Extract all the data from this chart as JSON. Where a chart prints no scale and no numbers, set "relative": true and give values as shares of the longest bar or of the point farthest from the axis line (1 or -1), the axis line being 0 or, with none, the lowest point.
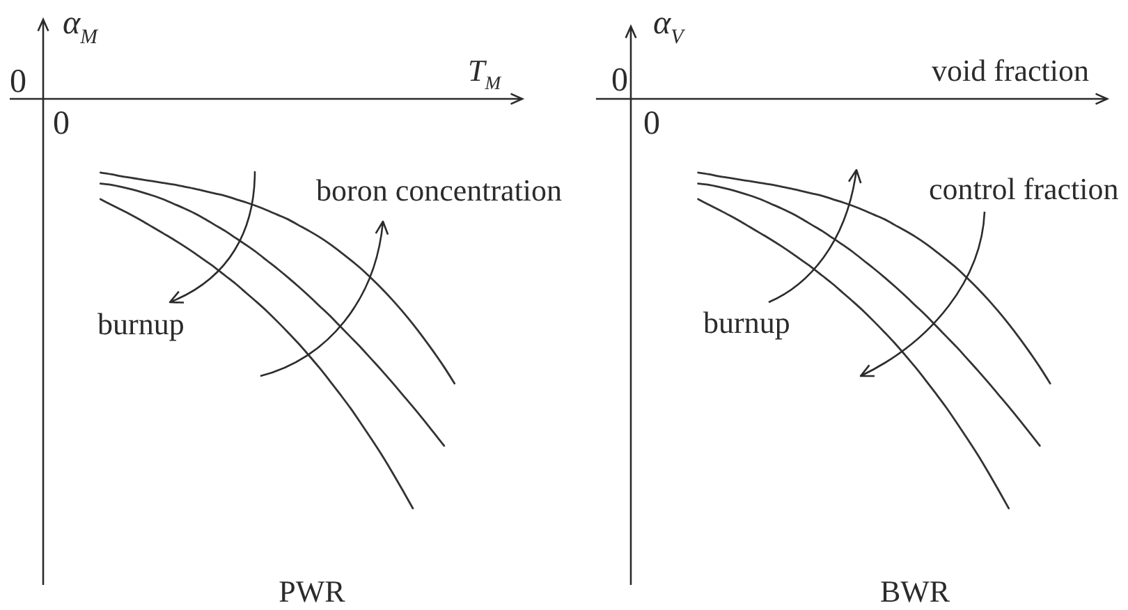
{
  "chart_data": [
    {
      "type": "line",
      "title": "PWR",
      "xlabel": "T$_{M}$",
      "ylabel": "α$_{M}$",
      "relative": true,
      "annotations": [
        "0",
        "0",
        "burnup",
        "boron concentration"
      ],
      "categories": [
        null,
        null,
        null,
        null,
        null,
        null,
        null,
        null,
        null,
        null,
        null,
        null,
        null,
        null,
        null,
        null,
        null,
        null,
        null,
        null,
        null,
        null,
        null,
        null,
        null,
        null,
        null,
        null,
        null,
        null,
        null,
        null,
        null,
        null,
        null,
        null,
        null,
        null,
        null,
        null,
        null,
        null,
        null,
        null,
        null,
        null
      ],
      "series": [
        {
          "color": "#333333",
          "values": [
            null,
            null,
            null,
            null,
            null,
            -0.18,
            -0.184,
            -0.189,
            -0.193,
            -0.197,
            -0.201,
            -0.205,
            -0.209,
            -0.214,
            -0.219,
            -0.225,
            -0.231,
            -0.237,
            -0.245,
            -0.253,
            -0.262,
            -0.272,
            -0.283,
            -0.294,
            -0.308,
            -0.322,
            -0.337,
            -0.354,
            -0.373,
            -0.393,
            -0.414,
            -0.438,
            -0.463,
            -0.49,
            -0.519,
            -0.55,
            -0.583,
            -0.618,
            -0.655,
            -0.695,
            null,
            null,
            null,
            null,
            null,
            null
          ]
        },
        {
          "color": "#333333",
          "values": [
            null,
            null,
            null,
            null,
            null,
            -0.207,
            -0.21,
            -0.215,
            -0.221,
            -0.228,
            -0.236,
            -0.245,
            -0.256,
            -0.267,
            -0.279,
            -0.293,
            -0.308,
            -0.323,
            -0.34,
            -0.357,
            -0.375,
            -0.395,
            -0.415,
            -0.436,
            -0.458,
            -0.481,
            -0.505,
            -0.529,
            -0.555,
            -0.581,
            -0.607,
            -0.635,
            -0.663,
            -0.692,
            -0.722,
            -0.752,
            -0.783,
            -0.815,
            -0.847,
            null,
            null,
            null,
            null,
            null,
            null,
            null
          ]
        },
        {
          "color": "#333333",
          "values": [
            null,
            null,
            null,
            null,
            null,
            -0.245,
            -0.258,
            -0.271,
            -0.284,
            -0.298,
            -0.313,
            -0.328,
            -0.343,
            -0.359,
            -0.376,
            -0.394,
            -0.412,
            -0.432,
            -0.452,
            -0.474,
            -0.496,
            -0.519,
            -0.544,
            -0.57,
            -0.597,
            -0.626,
            -0.656,
            -0.688,
            -0.721,
            -0.755,
            -0.792,
            -0.83,
            -0.869,
            -0.911,
            -0.955,
            -1,
            null,
            null,
            null,
            null,
            null,
            null,
            null,
            null,
            null,
            null
          ]
        }
      ]
    },
    {
      "type": "line",
      "title": "BWR",
      "xlabel": "void fraction",
      "ylabel": "α$_{V}$",
      "relative": true,
      "annotations": [
        "0",
        "0",
        "burnup",
        "control fraction"
      ],
      "categories": [
        null,
        null,
        null,
        null,
        null,
        null,
        null,
        null,
        null,
        null,
        null,
        null,
        null,
        null,
        null,
        null,
        null,
        null,
        null,
        null,
        null,
        null,
        null,
        null,
        null,
        null,
        null,
        null,
        null,
        null,
        null,
        null,
        null,
        null,
        null,
        null,
        null,
        null,
        null,
        null,
        null,
        null,
        null,
        null,
        null,
        null
      ],
      "series": [
        {
          "color": "#333333",
          "values": [
            null,
            null,
            null,
            null,
            null,
            null,
            -0.18,
            -0.184,
            -0.189,
            -0.193,
            -0.197,
            -0.201,
            -0.205,
            -0.209,
            -0.214,
            -0.219,
            -0.225,
            -0.231,
            -0.237,
            -0.245,
            -0.253,
            -0.262,
            -0.272,
            -0.283,
            -0.294,
            -0.308,
            -0.322,
            -0.337,
            -0.354,
            -0.373,
            -0.393,
            -0.414,
            -0.438,
            -0.463,
            -0.49,
            -0.519,
            -0.55,
            -0.583,
            -0.618,
            -0.655,
            -0.695,
            null,
            null,
            null,
            null,
            null
          ]
        },
        {
          "color": "#333333",
          "values": [
            null,
            null,
            null,
            null,
            null,
            null,
            -0.207,
            -0.21,
            -0.215,
            -0.221,
            -0.228,
            -0.236,
            -0.245,
            -0.256,
            -0.267,
            -0.279,
            -0.293,
            -0.308,
            -0.323,
            -0.34,
            -0.357,
            -0.375,
            -0.395,
            -0.415,
            -0.436,
            -0.458,
            -0.481,
            -0.505,
            -0.529,
            -0.555,
            -0.581,
            -0.607,
            -0.635,
            -0.663,
            -0.692,
            -0.722,
            -0.752,
            -0.783,
            -0.815,
            -0.847,
            null,
            null,
            null,
            null,
            null,
            null
          ]
        },
        {
          "color": "#333333",
          "values": [
            null,
            null,
            null,
            null,
            null,
            null,
            -0.245,
            -0.258,
            -0.271,
            -0.284,
            -0.298,
            -0.313,
            -0.328,
            -0.343,
            -0.359,
            -0.376,
            -0.394,
            -0.412,
            -0.432,
            -0.452,
            -0.474,
            -0.496,
            -0.519,
            -0.544,
            -0.57,
            -0.597,
            -0.626,
            -0.656,
            -0.688,
            -0.721,
            -0.755,
            -0.792,
            -0.83,
            -0.869,
            -0.911,
            -0.955,
            -1,
            null,
            null,
            null,
            null,
            null,
            null,
            null,
            null,
            null
          ]
        }
      ]
    }
  ]
}
